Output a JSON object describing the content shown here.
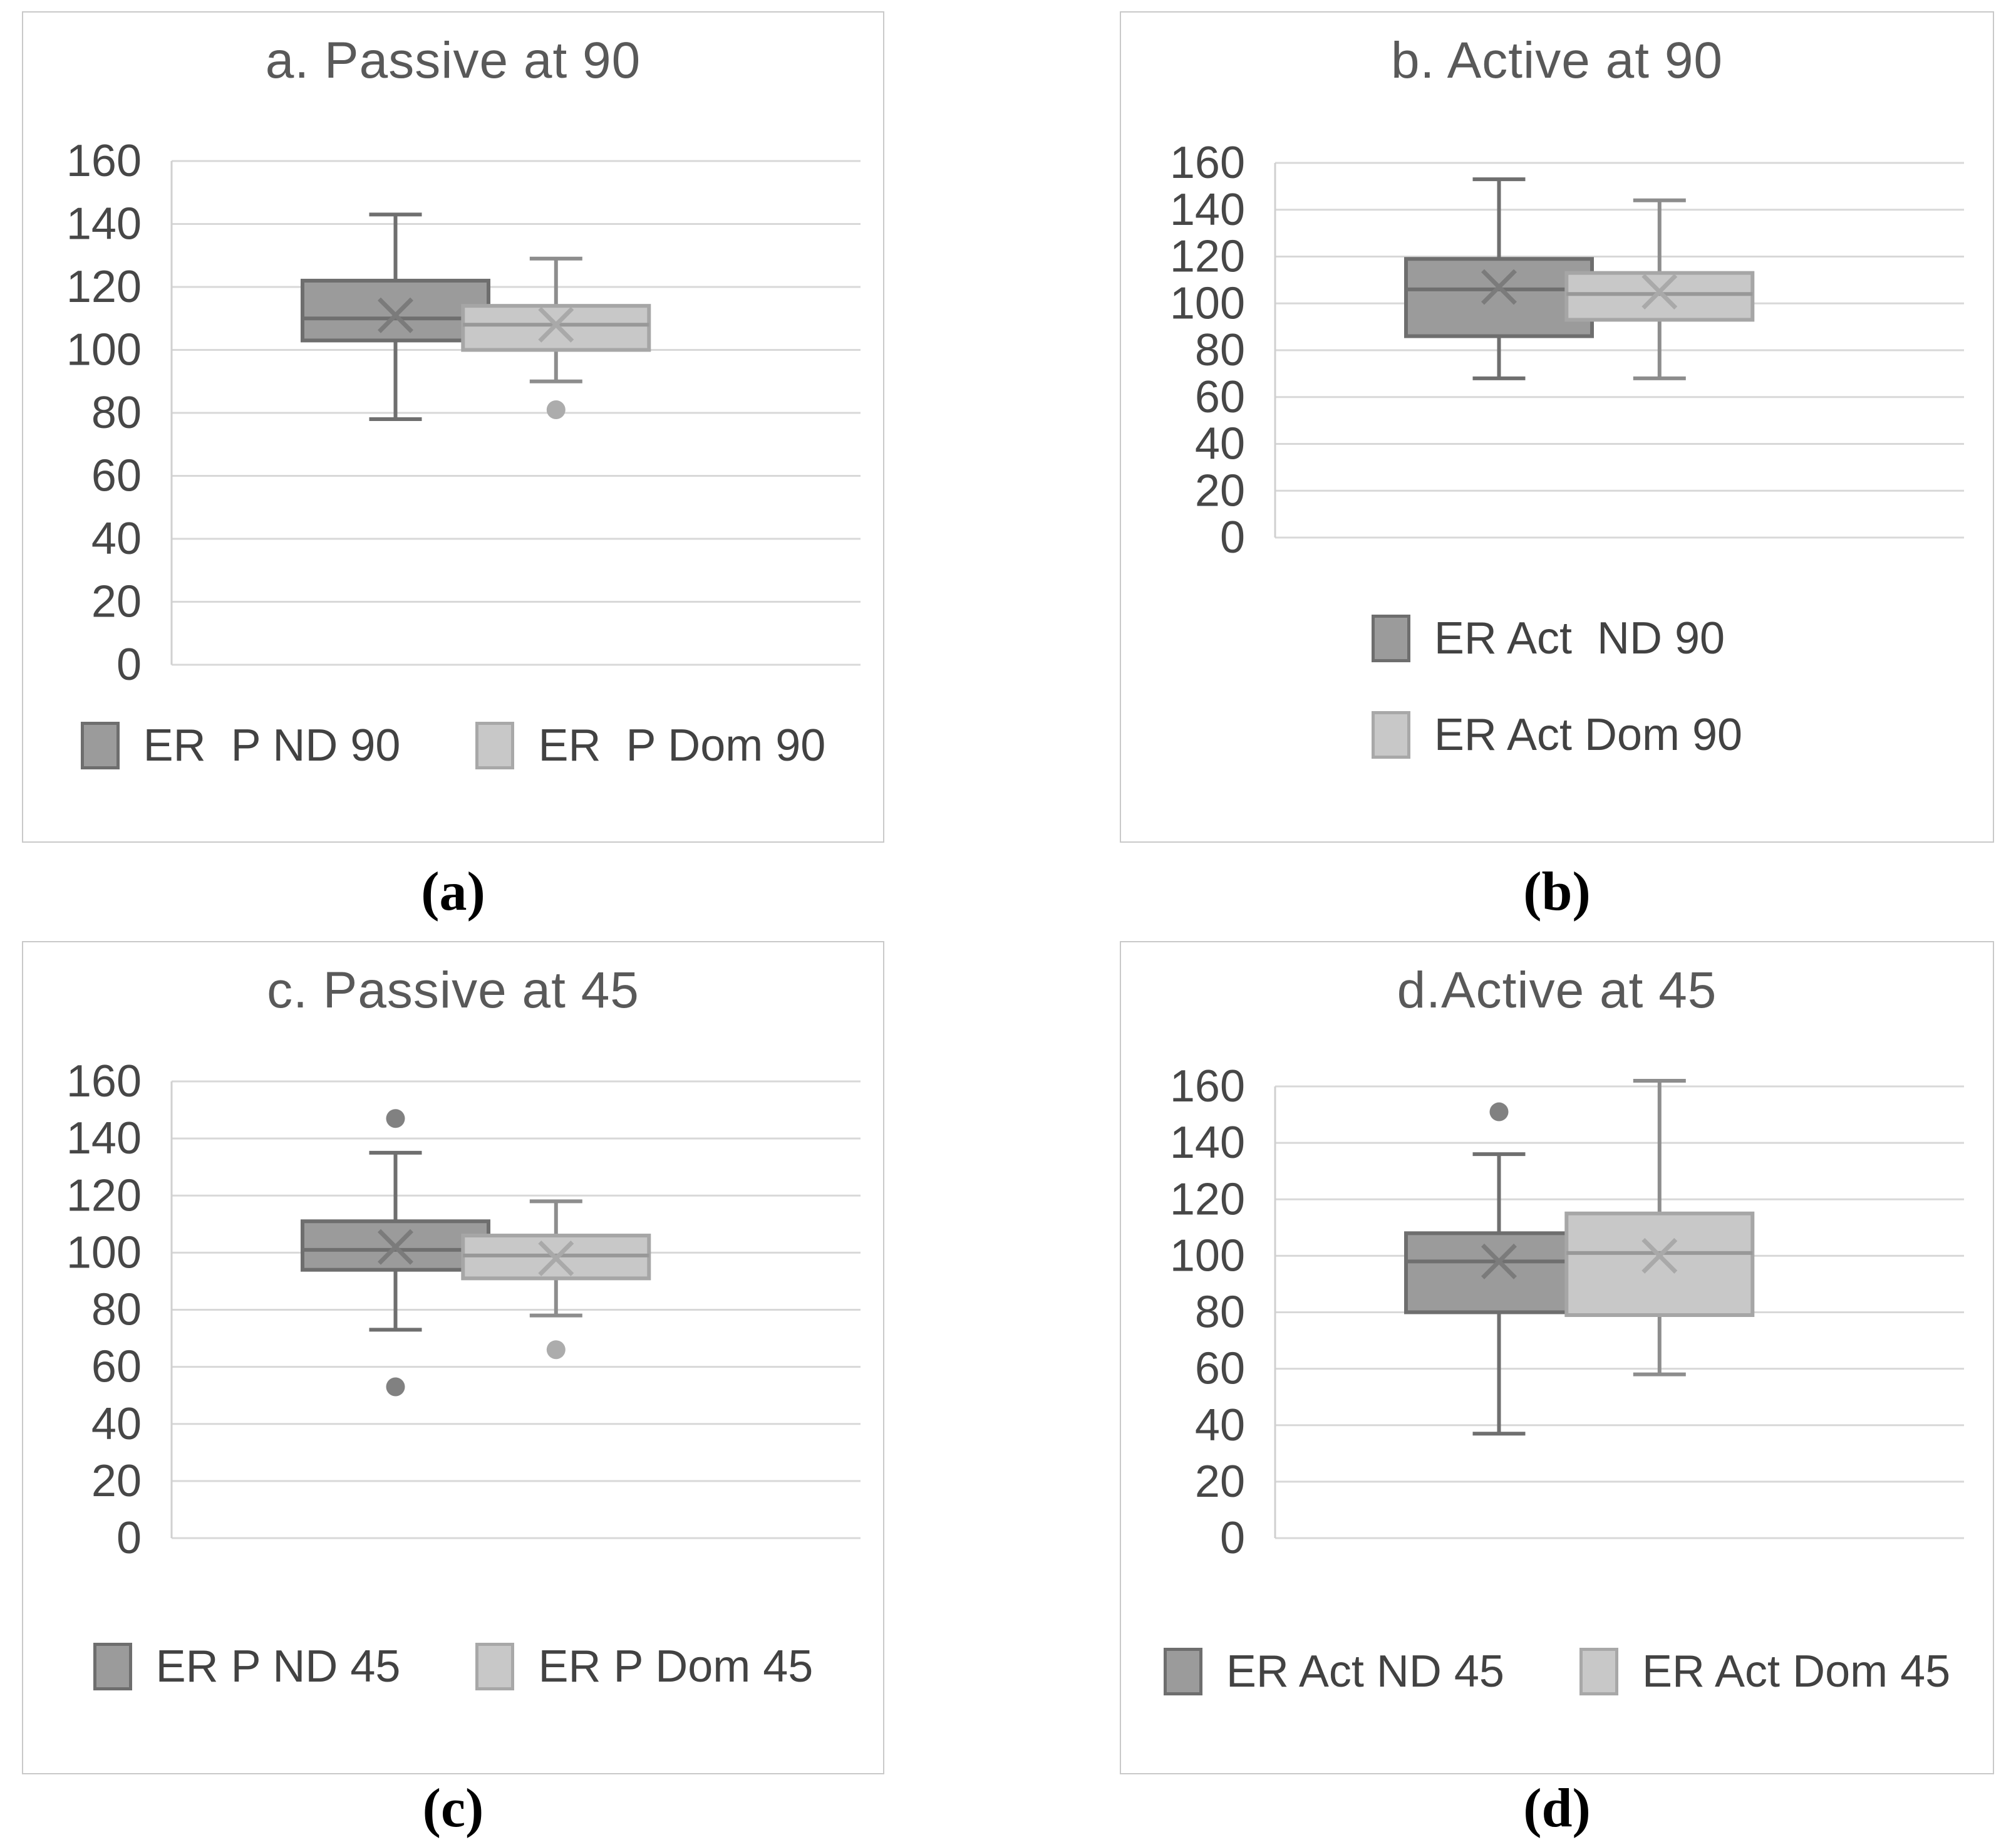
{
  "palette": {
    "gridline": "#d8d8d8",
    "axis_line": "#d0d0d0",
    "axis_text": "#474747",
    "title_text": "#595959",
    "legend_text": "#424242",
    "dark": {
      "fill": "#9b9b9b",
      "stroke": "#6e6e6e",
      "median": "#6f6f6f",
      "whisker": "#6f6f6f",
      "mean": "#7b7b7b",
      "outlier": "#818181"
    },
    "light": {
      "fill": "#c8c8c8",
      "stroke": "#a6a6a6",
      "median": "#989898",
      "whisker": "#8d8d8d",
      "mean": "#a9a9a9",
      "outlier": "#acacac"
    }
  },
  "chart_data": [
    {
      "type": "boxplot",
      "panel_id": "a",
      "title": "a. Passive at 90",
      "caption": "(a)",
      "ylim": [
        0,
        160
      ],
      "yticks": [
        160,
        140,
        120,
        100,
        80,
        60,
        40,
        20,
        0
      ],
      "grid": true,
      "legend_position": "bottom-horizontal",
      "series": [
        {
          "name": "ER  P ND 90",
          "shade": "dark",
          "min": 78,
          "q1": 103,
          "median": 110,
          "mean": 111,
          "q3": 122,
          "max": 143,
          "outliers": []
        },
        {
          "name": "ER  P Dom 90",
          "shade": "light",
          "min": 90,
          "q1": 100,
          "median": 108,
          "mean": 108,
          "q3": 114,
          "max": 129,
          "outliers": [
            81
          ]
        }
      ]
    },
    {
      "type": "boxplot",
      "panel_id": "b",
      "title": "b. Active at 90",
      "caption": "(b)",
      "ylim": [
        0,
        160
      ],
      "yticks": [
        160,
        140,
        120,
        100,
        80,
        60,
        40,
        20,
        0
      ],
      "grid": true,
      "legend_position": "bottom-vertical",
      "series": [
        {
          "name": "ER Act  ND 90",
          "shade": "dark",
          "min": 68,
          "q1": 86,
          "median": 106,
          "mean": 107,
          "q3": 119,
          "max": 153,
          "outliers": []
        },
        {
          "name": "ER Act Dom 90",
          "shade": "light",
          "min": 68,
          "q1": 93,
          "median": 104,
          "mean": 105,
          "q3": 113,
          "max": 144,
          "outliers": []
        }
      ]
    },
    {
      "type": "boxplot",
      "panel_id": "c",
      "title": "c. Passive at 45",
      "caption": "(c)",
      "ylim": [
        0,
        160
      ],
      "yticks": [
        160,
        140,
        120,
        100,
        80,
        60,
        40,
        20,
        0
      ],
      "grid": true,
      "legend_position": "bottom-horizontal",
      "series": [
        {
          "name": "ER P ND 45",
          "shade": "dark",
          "min": 73,
          "q1": 94,
          "median": 101,
          "mean": 102,
          "q3": 111,
          "max": 135,
          "outliers": [
            147,
            53
          ]
        },
        {
          "name": "ER P Dom 45",
          "shade": "light",
          "min": 78,
          "q1": 91,
          "median": 99,
          "mean": 98,
          "q3": 106,
          "max": 118,
          "outliers": [
            66
          ]
        }
      ]
    },
    {
      "type": "boxplot",
      "panel_id": "d",
      "title": "d.Active at 45",
      "caption": "(d)",
      "ylim": [
        0,
        160
      ],
      "yticks": [
        160,
        140,
        120,
        100,
        80,
        60,
        40,
        20,
        0
      ],
      "grid": true,
      "legend_position": "bottom-horizontal",
      "series": [
        {
          "name": "ER Act ND 45",
          "shade": "dark",
          "min": 37,
          "q1": 80,
          "median": 98,
          "mean": 98,
          "q3": 108,
          "max": 136,
          "outliers": [
            151
          ]
        },
        {
          "name": "ER Act Dom 45",
          "shade": "light",
          "min": 58,
          "q1": 79,
          "median": 101,
          "mean": 100,
          "q3": 115,
          "max": 162,
          "outliers": []
        }
      ]
    }
  ]
}
